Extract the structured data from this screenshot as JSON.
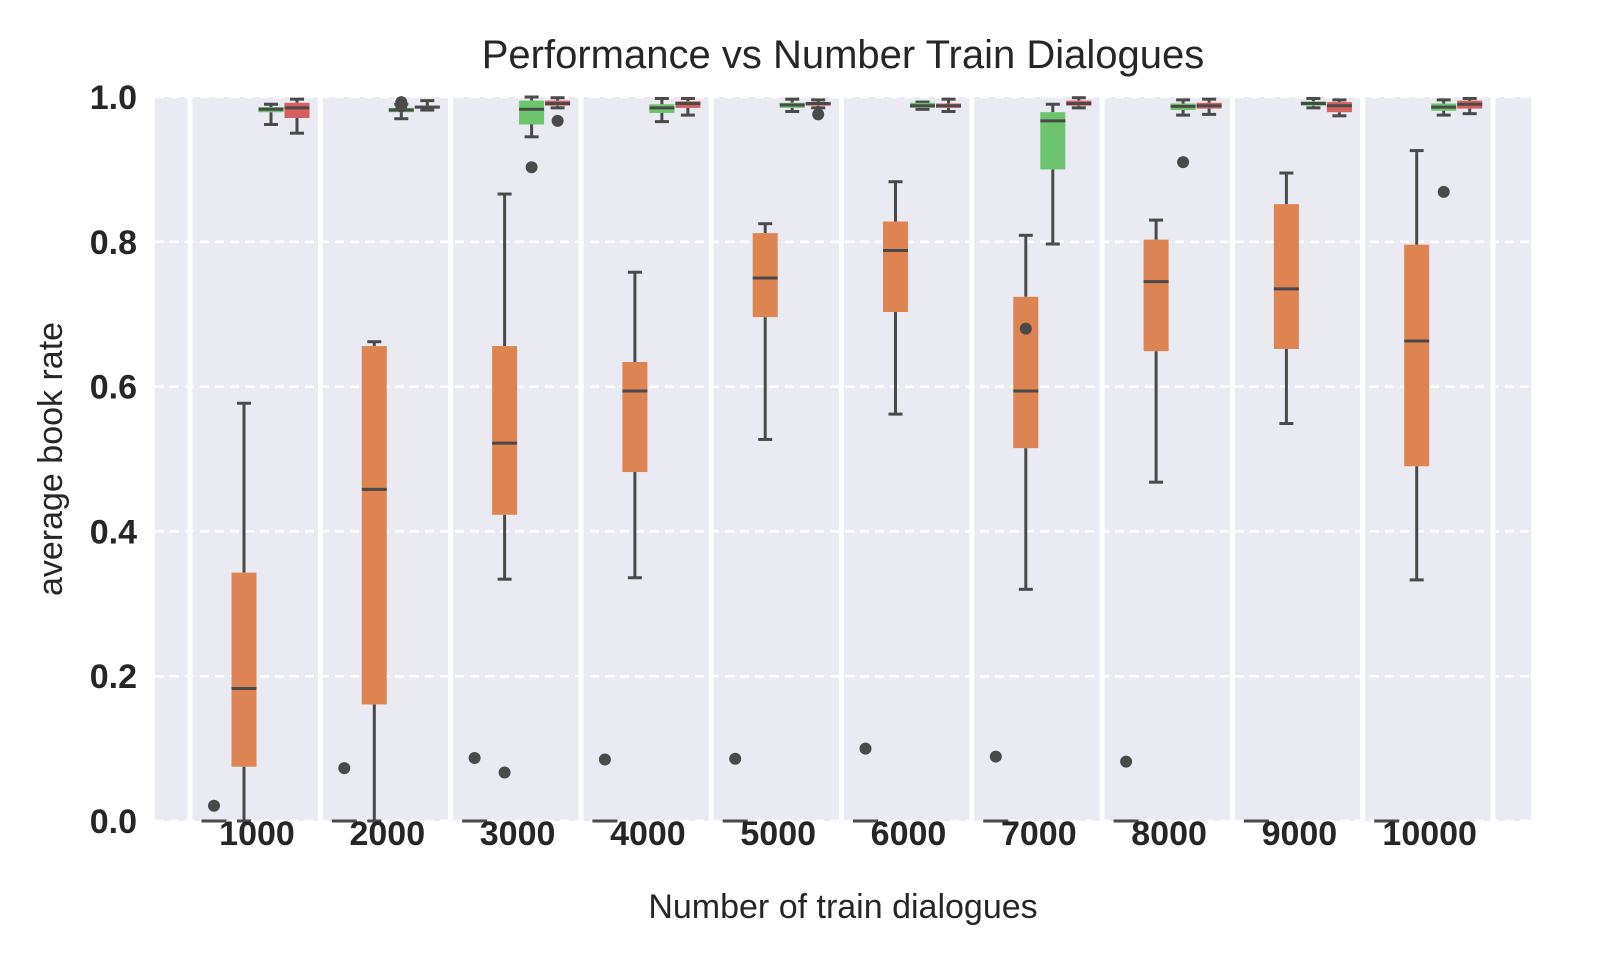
{
  "chart_data": {
    "type": "box",
    "title": "Performance vs Number Train Dialogues",
    "xlabel": "Number of train dialogues",
    "ylabel": "average book rate",
    "ylim": [
      0,
      1
    ],
    "yticks": [
      "0.0",
      "0.2",
      "0.4",
      "0.6",
      "0.8",
      "1.0"
    ],
    "grid": "horizontal dashed",
    "categories": [
      "1000",
      "2000",
      "3000",
      "4000",
      "5000",
      "6000",
      "7000",
      "8000",
      "9000",
      "10000"
    ],
    "series_colors": [
      "#8c8c8c",
      "#dd8452",
      "#6cc46c",
      "#d65f5f"
    ],
    "series": [
      {
        "values": [
          {
            "whislo": 0,
            "q1": 0,
            "med": 0,
            "q3": 0,
            "whishi": 0,
            "fliers": [
              0.021
            ]
          },
          {
            "whislo": 0,
            "q1": 0,
            "med": 0,
            "q3": 0,
            "whishi": 0,
            "fliers": [
              0.073
            ]
          },
          {
            "whislo": 0,
            "q1": 0,
            "med": 0,
            "q3": 0,
            "whishi": 0,
            "fliers": [
              0.087
            ]
          },
          {
            "whislo": 0,
            "q1": 0,
            "med": 0,
            "q3": 0,
            "whishi": 0,
            "fliers": [
              0.085
            ]
          },
          {
            "whislo": 0,
            "q1": 0,
            "med": 0,
            "q3": 0,
            "whishi": 0,
            "fliers": [
              0.086
            ]
          },
          {
            "whislo": 0,
            "q1": 0,
            "med": 0,
            "q3": 0,
            "whishi": 0,
            "fliers": [
              0.1
            ]
          },
          {
            "whislo": 0,
            "q1": 0,
            "med": 0,
            "q3": 0,
            "whishi": 0,
            "fliers": [
              0.089
            ]
          },
          {
            "whislo": 0,
            "q1": 0,
            "med": 0,
            "q3": 0,
            "whishi": 0,
            "fliers": [
              0.082
            ]
          },
          {
            "whislo": 0,
            "q1": 0,
            "med": 0,
            "q3": 0,
            "whishi": 0,
            "fliers": []
          },
          {
            "whislo": 0,
            "q1": 0,
            "med": 0,
            "q3": 0,
            "whishi": 0,
            "fliers": []
          }
        ]
      },
      {
        "values": [
          {
            "whislo": 0.0,
            "q1": 0.075,
            "med": 0.183,
            "q3": 0.343,
            "whishi": 0.577,
            "fliers": []
          },
          {
            "whislo": 0.0,
            "q1": 0.161,
            "med": 0.458,
            "q3": 0.656,
            "whishi": 0.662,
            "fliers": []
          },
          {
            "whislo": 0.334,
            "q1": 0.423,
            "med": 0.522,
            "q3": 0.656,
            "whishi": 0.866,
            "fliers": [
              0.067
            ]
          },
          {
            "whislo": 0.336,
            "q1": 0.482,
            "med": 0.594,
            "q3": 0.634,
            "whishi": 0.758,
            "fliers": []
          },
          {
            "whislo": 0.527,
            "q1": 0.696,
            "med": 0.75,
            "q3": 0.812,
            "whishi": 0.825,
            "fliers": []
          },
          {
            "whislo": 0.562,
            "q1": 0.703,
            "med": 0.788,
            "q3": 0.828,
            "whishi": 0.883,
            "fliers": []
          },
          {
            "whislo": 0.32,
            "q1": 0.515,
            "med": 0.594,
            "q3": 0.724,
            "whishi": 0.809,
            "fliers": [
              0.68
            ]
          },
          {
            "whislo": 0.468,
            "q1": 0.649,
            "med": 0.745,
            "q3": 0.803,
            "whishi": 0.83,
            "fliers": []
          },
          {
            "whislo": 0.549,
            "q1": 0.652,
            "med": 0.735,
            "q3": 0.852,
            "whishi": 0.895,
            "fliers": []
          },
          {
            "whislo": 0.333,
            "q1": 0.49,
            "med": 0.663,
            "q3": 0.796,
            "whishi": 0.926,
            "fliers": []
          }
        ]
      },
      {
        "values": [
          {
            "whislo": 0.962,
            "q1": 0.979,
            "med": 0.983,
            "q3": 0.986,
            "whishi": 0.99,
            "fliers": []
          },
          {
            "whislo": 0.97,
            "q1": 0.979,
            "med": 0.982,
            "q3": 0.985,
            "whishi": 0.99,
            "fliers": [
              0.993,
              0.987
            ]
          },
          {
            "whislo": 0.945,
            "q1": 0.962,
            "med": 0.983,
            "q3": 0.995,
            "whishi": 1.0,
            "fliers": [
              0.903
            ]
          },
          {
            "whislo": 0.966,
            "q1": 0.978,
            "med": 0.985,
            "q3": 0.99,
            "whishi": 0.998,
            "fliers": []
          },
          {
            "whislo": 0.98,
            "q1": 0.985,
            "med": 0.989,
            "q3": 0.992,
            "whishi": 0.997,
            "fliers": []
          },
          {
            "whislo": 0.983,
            "q1": 0.985,
            "med": 0.988,
            "q3": 0.992,
            "whishi": 0.993,
            "fliers": []
          },
          {
            "whislo": 0.797,
            "q1": 0.9,
            "med": 0.967,
            "q3": 0.979,
            "whishi": 0.99,
            "fliers": []
          },
          {
            "whislo": 0.975,
            "q1": 0.982,
            "med": 0.987,
            "q3": 0.991,
            "whishi": 0.996,
            "fliers": [
              0.91
            ]
          },
          {
            "whislo": 0.985,
            "q1": 0.988,
            "med": 0.991,
            "q3": 0.994,
            "whishi": 0.998,
            "fliers": []
          },
          {
            "whislo": 0.975,
            "q1": 0.981,
            "med": 0.986,
            "q3": 0.991,
            "whishi": 0.996,
            "fliers": [
              0.869
            ]
          }
        ]
      },
      {
        "values": [
          {
            "whislo": 0.95,
            "q1": 0.971,
            "med": 0.985,
            "q3": 0.992,
            "whishi": 0.997,
            "fliers": []
          },
          {
            "whislo": 0.982,
            "q1": 0.984,
            "med": 0.986,
            "q3": 0.988,
            "whishi": 0.995,
            "fliers": []
          },
          {
            "whislo": 0.985,
            "q1": 0.988,
            "med": 0.991,
            "q3": 0.995,
            "whishi": 0.999,
            "fliers": [
              0.967
            ]
          },
          {
            "whislo": 0.975,
            "q1": 0.985,
            "med": 0.991,
            "q3": 0.994,
            "whishi": 0.998,
            "fliers": []
          },
          {
            "whislo": 0.985,
            "q1": 0.988,
            "med": 0.991,
            "q3": 0.993,
            "whishi": 0.996,
            "fliers": [
              0.976
            ]
          },
          {
            "whislo": 0.98,
            "q1": 0.985,
            "med": 0.988,
            "q3": 0.991,
            "whishi": 0.997,
            "fliers": []
          },
          {
            "whislo": 0.985,
            "q1": 0.988,
            "med": 0.991,
            "q3": 0.995,
            "whishi": 0.999,
            "fliers": []
          },
          {
            "whislo": 0.976,
            "q1": 0.984,
            "med": 0.988,
            "q3": 0.992,
            "whishi": 0.997,
            "fliers": []
          },
          {
            "whislo": 0.974,
            "q1": 0.979,
            "med": 0.988,
            "q3": 0.993,
            "whishi": 0.996,
            "fliers": []
          },
          {
            "whislo": 0.977,
            "q1": 0.984,
            "med": 0.99,
            "q3": 0.995,
            "whishi": 0.998,
            "fliers": []
          }
        ]
      }
    ]
  }
}
